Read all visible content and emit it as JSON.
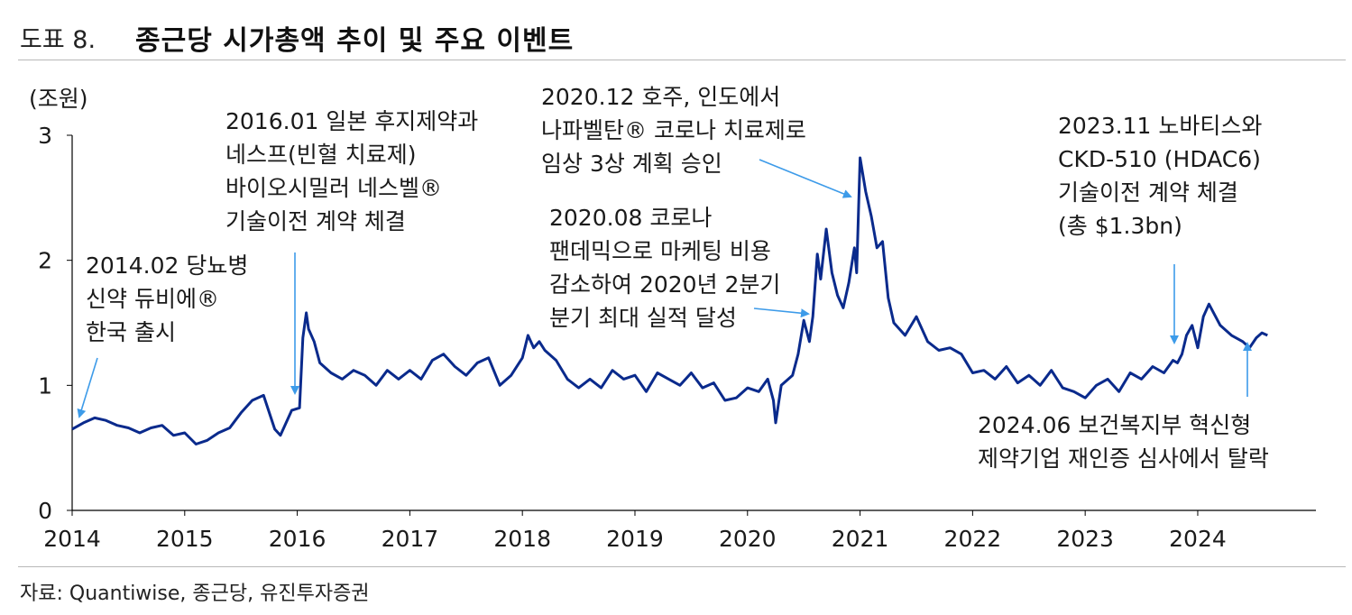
{
  "header": {
    "figure_number": "도표 8.",
    "title": "종근당 시가총액 추이 및 주요 이벤트"
  },
  "footer": {
    "source": "자료: Quantiwise, 종근당, 유진투자증권"
  },
  "chart_data": {
    "type": "line",
    "title": "종근당 시가총액 추이 및 주요 이벤트",
    "ylabel": "(조원)",
    "xlabel": "",
    "ylim": [
      0,
      3
    ],
    "yticks": [
      "0",
      "1",
      "2",
      "3"
    ],
    "xlim": [
      2014.0,
      2025.05
    ],
    "xticks": [
      "2014",
      "2015",
      "2016",
      "2017",
      "2018",
      "2019",
      "2020",
      "2021",
      "2022",
      "2023",
      "2024"
    ],
    "grid": false,
    "legend": "none",
    "line_color": "#0a2a8c",
    "arrow_color": "#3d9be9",
    "series": [
      {
        "values_note": "",
        "x": [
          2014.0,
          2014.1,
          2014.2,
          2014.3,
          2014.4,
          2014.5,
          2014.6,
          2014.7,
          2014.8,
          2014.9,
          2015.0,
          2015.1,
          2015.2,
          2015.3,
          2015.4,
          2015.5,
          2015.6,
          2015.7,
          2015.8,
          2015.85,
          2015.95,
          2016.02,
          2016.05,
          2016.08,
          2016.1,
          2016.15,
          2016.2,
          2016.3,
          2016.4,
          2016.5,
          2016.6,
          2016.7,
          2016.8,
          2016.9,
          2017.0,
          2017.1,
          2017.2,
          2017.3,
          2017.4,
          2017.5,
          2017.6,
          2017.7,
          2017.8,
          2017.9,
          2018.0,
          2018.05,
          2018.1,
          2018.15,
          2018.2,
          2018.3,
          2018.4,
          2018.5,
          2018.6,
          2018.7,
          2018.8,
          2018.9,
          2019.0,
          2019.1,
          2019.2,
          2019.3,
          2019.4,
          2019.5,
          2019.6,
          2019.7,
          2019.8,
          2019.9,
          2020.0,
          2020.1,
          2020.18,
          2020.23,
          2020.25,
          2020.3,
          2020.4,
          2020.45,
          2020.5,
          2020.55,
          2020.58,
          2020.62,
          2020.65,
          2020.7,
          2020.75,
          2020.8,
          2020.85,
          2020.9,
          2020.95,
          2020.97,
          2021.0,
          2021.05,
          2021.1,
          2021.15,
          2021.2,
          2021.25,
          2021.3,
          2021.4,
          2021.5,
          2021.6,
          2021.7,
          2021.8,
          2021.9,
          2022.0,
          2022.1,
          2022.2,
          2022.3,
          2022.4,
          2022.5,
          2022.6,
          2022.7,
          2022.8,
          2022.9,
          2023.0,
          2023.1,
          2023.2,
          2023.3,
          2023.4,
          2023.5,
          2023.6,
          2023.7,
          2023.78,
          2023.82,
          2023.86,
          2023.9,
          2023.95,
          2024.0,
          2024.05,
          2024.1,
          2024.2,
          2024.3,
          2024.4,
          2024.46,
          2024.52,
          2024.57,
          2024.62
        ],
        "y": [
          0.65,
          0.7,
          0.74,
          0.72,
          0.68,
          0.66,
          0.62,
          0.66,
          0.68,
          0.6,
          0.62,
          0.53,
          0.56,
          0.62,
          0.66,
          0.78,
          0.88,
          0.92,
          0.65,
          0.6,
          0.8,
          0.82,
          1.38,
          1.58,
          1.45,
          1.35,
          1.18,
          1.1,
          1.05,
          1.12,
          1.08,
          1.0,
          1.12,
          1.05,
          1.12,
          1.05,
          1.2,
          1.25,
          1.15,
          1.08,
          1.18,
          1.22,
          1.0,
          1.08,
          1.22,
          1.4,
          1.3,
          1.35,
          1.28,
          1.2,
          1.05,
          0.98,
          1.05,
          0.98,
          1.12,
          1.05,
          1.08,
          0.95,
          1.1,
          1.05,
          1.0,
          1.1,
          0.98,
          1.02,
          0.88,
          0.9,
          0.98,
          0.95,
          1.05,
          0.88,
          0.7,
          1.0,
          1.08,
          1.25,
          1.52,
          1.35,
          1.55,
          2.05,
          1.85,
          2.25,
          1.9,
          1.72,
          1.62,
          1.82,
          2.1,
          1.9,
          2.82,
          2.55,
          2.35,
          2.1,
          2.15,
          1.7,
          1.5,
          1.4,
          1.55,
          1.35,
          1.28,
          1.3,
          1.25,
          1.1,
          1.12,
          1.05,
          1.15,
          1.02,
          1.08,
          1.0,
          1.12,
          0.98,
          0.95,
          0.9,
          1.0,
          1.05,
          0.95,
          1.1,
          1.05,
          1.15,
          1.1,
          1.2,
          1.18,
          1.25,
          1.4,
          1.48,
          1.3,
          1.55,
          1.65,
          1.48,
          1.4,
          1.35,
          1.3,
          1.38,
          1.42,
          1.4
        ]
      }
    ],
    "annotations": [
      {
        "lines": [
          "2014.02 당뇨병",
          "신약 듀비에®",
          "한국 출시"
        ]
      },
      {
        "lines": [
          "2016.01 일본 후지제약과",
          "네스프(빈혈 치료제)",
          "바이오시밀러 네스벨®",
          "기술이전 계약 체결"
        ]
      },
      {
        "lines": [
          "2020.12 호주, 인도에서",
          "나파벨탄® 코로나 치료제로",
          "임상 3상 계획 승인"
        ]
      },
      {
        "lines": [
          "2020.08 코로나",
          "팬데믹으로 마케팅 비용",
          "감소하여 2020년 2분기",
          "분기 최대 실적 달성"
        ]
      },
      {
        "lines": [
          "2023.11 노바티스와",
          "CKD-510 (HDAC6)",
          "기술이전 계약 체결",
          "(총 $1.3bn)"
        ]
      },
      {
        "lines": [
          "2024.06 보건복지부 혁신형",
          "제약기업 재인증 심사에서 탈락"
        ]
      }
    ]
  }
}
